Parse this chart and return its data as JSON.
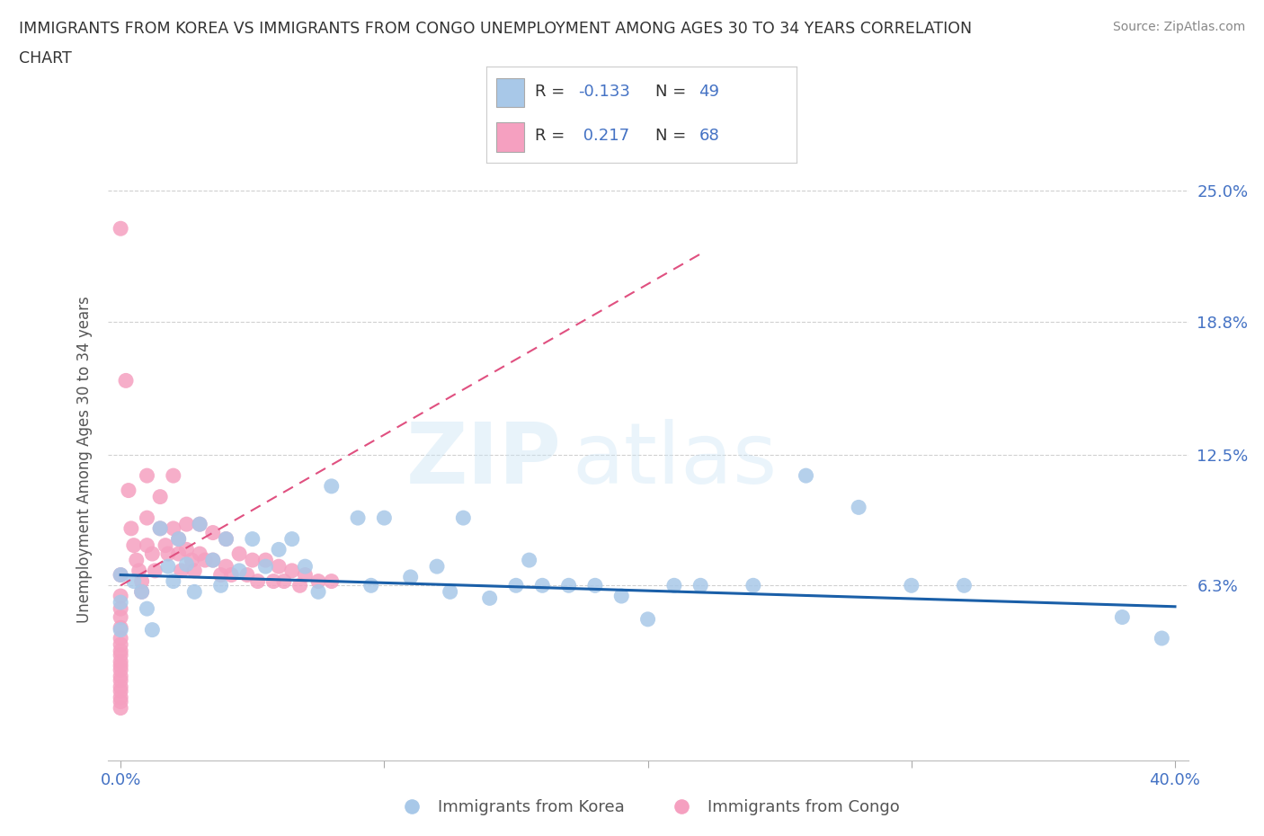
{
  "title_line1": "IMMIGRANTS FROM KOREA VS IMMIGRANTS FROM CONGO UNEMPLOYMENT AMONG AGES 30 TO 34 YEARS CORRELATION",
  "title_line2": "CHART",
  "source": "Source: ZipAtlas.com",
  "ylabel": "Unemployment Among Ages 30 to 34 years",
  "xlim": [
    -0.005,
    0.405
  ],
  "ylim": [
    -0.02,
    0.265
  ],
  "ytick_vals": [
    0.063,
    0.125,
    0.188,
    0.25
  ],
  "ytick_labels": [
    "6.3%",
    "12.5%",
    "18.8%",
    "25.0%"
  ],
  "xtick_vals": [
    0.0,
    0.1,
    0.2,
    0.3,
    0.4
  ],
  "xtick_labels": [
    "0.0%",
    "",
    "",
    "",
    "40.0%"
  ],
  "watermark": "ZIPatlas",
  "korea_color": "#a8c8e8",
  "korea_line_color": "#1a5fa8",
  "congo_color": "#f5a0c0",
  "congo_line_color": "#e05080",
  "grid_color": "#d0d0d0",
  "korea_x": [
    0.0,
    0.0,
    0.0,
    0.005,
    0.008,
    0.01,
    0.012,
    0.015,
    0.018,
    0.02,
    0.022,
    0.025,
    0.028,
    0.03,
    0.035,
    0.038,
    0.04,
    0.045,
    0.05,
    0.055,
    0.06,
    0.065,
    0.07,
    0.075,
    0.08,
    0.09,
    0.095,
    0.1,
    0.11,
    0.12,
    0.125,
    0.13,
    0.14,
    0.15,
    0.155,
    0.16,
    0.17,
    0.18,
    0.19,
    0.2,
    0.21,
    0.22,
    0.24,
    0.26,
    0.28,
    0.3,
    0.32,
    0.38,
    0.395
  ],
  "korea_y": [
    0.068,
    0.055,
    0.042,
    0.065,
    0.06,
    0.052,
    0.042,
    0.09,
    0.072,
    0.065,
    0.085,
    0.073,
    0.06,
    0.092,
    0.075,
    0.063,
    0.085,
    0.07,
    0.085,
    0.072,
    0.08,
    0.085,
    0.072,
    0.06,
    0.11,
    0.095,
    0.063,
    0.095,
    0.067,
    0.072,
    0.06,
    0.095,
    0.057,
    0.063,
    0.075,
    0.063,
    0.063,
    0.063,
    0.058,
    0.047,
    0.063,
    0.063,
    0.063,
    0.115,
    0.1,
    0.063,
    0.063,
    0.048,
    0.038
  ],
  "congo_x": [
    0.0,
    0.0,
    0.0,
    0.0,
    0.0,
    0.0,
    0.0,
    0.0,
    0.0,
    0.0,
    0.0,
    0.0,
    0.0,
    0.0,
    0.0,
    0.0,
    0.0,
    0.0,
    0.0,
    0.0,
    0.002,
    0.003,
    0.004,
    0.005,
    0.006,
    0.007,
    0.008,
    0.008,
    0.01,
    0.01,
    0.01,
    0.012,
    0.013,
    0.015,
    0.015,
    0.017,
    0.018,
    0.02,
    0.02,
    0.022,
    0.022,
    0.023,
    0.025,
    0.025,
    0.027,
    0.028,
    0.03,
    0.03,
    0.032,
    0.035,
    0.035,
    0.038,
    0.04,
    0.04,
    0.042,
    0.045,
    0.048,
    0.05,
    0.052,
    0.055,
    0.058,
    0.06,
    0.062,
    0.065,
    0.068,
    0.07,
    0.075,
    0.08
  ],
  "congo_y": [
    0.232,
    0.068,
    0.058,
    0.052,
    0.048,
    0.043,
    0.038,
    0.035,
    0.032,
    0.03,
    0.027,
    0.025,
    0.023,
    0.02,
    0.018,
    0.015,
    0.013,
    0.01,
    0.008,
    0.005,
    0.16,
    0.108,
    0.09,
    0.082,
    0.075,
    0.07,
    0.065,
    0.06,
    0.115,
    0.095,
    0.082,
    0.078,
    0.07,
    0.105,
    0.09,
    0.082,
    0.078,
    0.115,
    0.09,
    0.085,
    0.078,
    0.07,
    0.092,
    0.08,
    0.075,
    0.07,
    0.092,
    0.078,
    0.075,
    0.088,
    0.075,
    0.068,
    0.085,
    0.072,
    0.068,
    0.078,
    0.068,
    0.075,
    0.065,
    0.075,
    0.065,
    0.072,
    0.065,
    0.07,
    0.063,
    0.068,
    0.065,
    0.065
  ],
  "korea_trend_x": [
    0.0,
    0.4
  ],
  "korea_trend_y_start": 0.068,
  "korea_trend_y_end": 0.053,
  "congo_trend_x_start": 0.0,
  "congo_trend_x_end": 0.22,
  "congo_trend_y_start": 0.063,
  "congo_trend_y_end": 0.22
}
